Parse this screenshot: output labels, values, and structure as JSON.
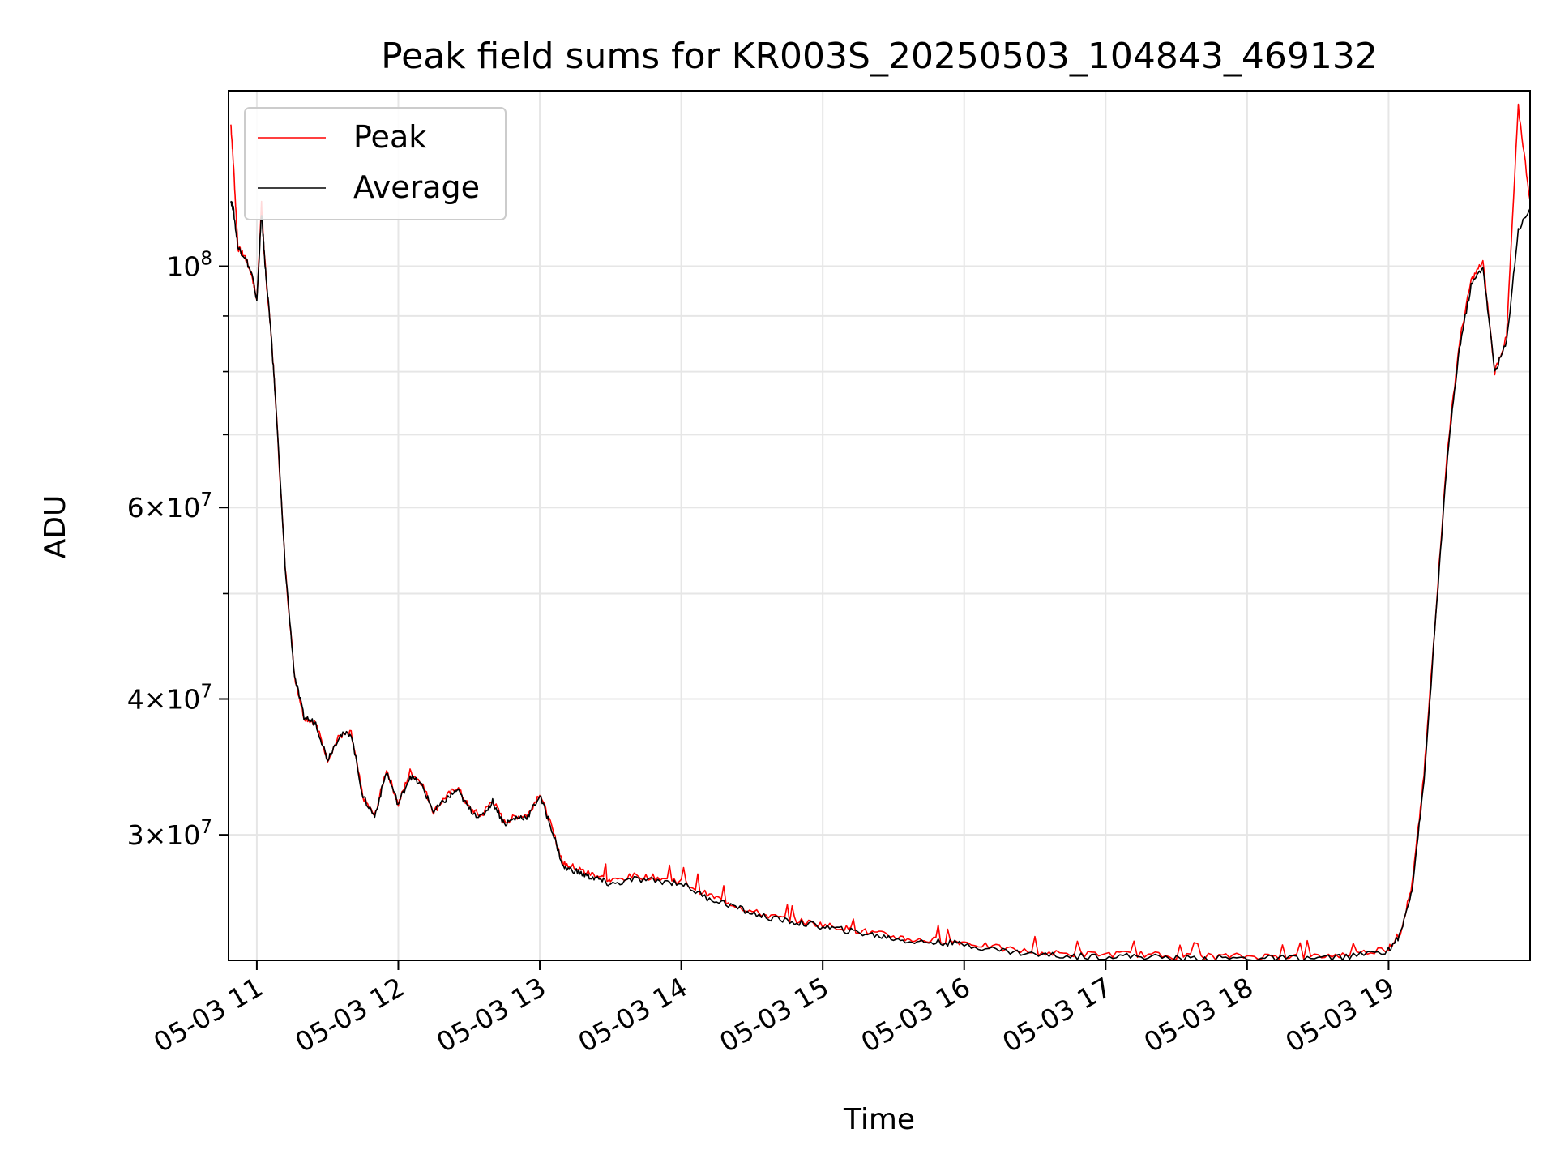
{
  "chart_data": {
    "type": "line",
    "title": "Peak field sums for KR003S_20250503_104843_469132",
    "xlabel": "Time",
    "ylabel": "ADU",
    "yscale": "log",
    "ylim": [
      23000000,
      145000000
    ],
    "xlim": [
      "2025-05-03T10:48",
      "2025-05-03T20:00"
    ],
    "grid": true,
    "legend": "upper left",
    "x_ticks": [
      {
        "t": "2025-05-03T11:00",
        "label": "05-03 11"
      },
      {
        "t": "2025-05-03T12:00",
        "label": "05-03 12"
      },
      {
        "t": "2025-05-03T13:00",
        "label": "05-03 13"
      },
      {
        "t": "2025-05-03T14:00",
        "label": "05-03 14"
      },
      {
        "t": "2025-05-03T15:00",
        "label": "05-03 15"
      },
      {
        "t": "2025-05-03T16:00",
        "label": "05-03 16"
      },
      {
        "t": "2025-05-03T17:00",
        "label": "05-03 17"
      },
      {
        "t": "2025-05-03T18:00",
        "label": "05-03 18"
      },
      {
        "t": "2025-05-03T19:00",
        "label": "05-03 19"
      }
    ],
    "y_ticks": [
      {
        "value": 30000000,
        "base": "3",
        "exp": "7"
      },
      {
        "value": 40000000,
        "base": "4",
        "exp": "7"
      },
      {
        "value": 60000000,
        "base": "6",
        "exp": "7"
      },
      {
        "value": 100000000,
        "base": "",
        "exp": "8"
      }
    ],
    "y_minor_ticks": [
      50000000,
      70000000,
      80000000,
      90000000
    ],
    "times_of_day": [
      "10:49",
      "10:50",
      "10:52",
      "10:55",
      "10:58",
      "11:00",
      "11:02",
      "11:03",
      "11:04",
      "11:06",
      "11:08",
      "11:12",
      "11:16",
      "11:20",
      "11:25",
      "11:30",
      "11:35",
      "11:40",
      "11:45",
      "11:50",
      "11:55",
      "12:00",
      "12:05",
      "12:10",
      "12:15",
      "12:20",
      "12:25",
      "12:30",
      "12:35",
      "12:40",
      "12:45",
      "12:50",
      "12:55",
      "13:00",
      "13:05",
      "13:10",
      "13:15",
      "13:20",
      "13:25",
      "13:30",
      "13:40",
      "13:50",
      "14:00",
      "14:10",
      "14:20",
      "14:30",
      "14:40",
      "14:50",
      "15:00",
      "15:10",
      "15:20",
      "15:30",
      "15:40",
      "15:50",
      "16:00",
      "16:15",
      "16:30",
      "16:45",
      "17:00",
      "17:15",
      "17:30",
      "17:45",
      "18:00",
      "18:15",
      "18:30",
      "18:45",
      "19:00",
      "19:05",
      "19:10",
      "19:15",
      "19:20",
      "19:25",
      "19:30",
      "19:35",
      "19:40",
      "19:45",
      "19:50",
      "19:55",
      "20:00"
    ],
    "series": [
      {
        "name": "Peak",
        "color": "#ff0000",
        "values": [
          135000000,
          125000000,
          104000000,
          102000000,
          98000000,
          93000000,
          114000000,
          104000000,
          97000000,
          87000000,
          75000000,
          53000000,
          42000000,
          38500000,
          38000000,
          35200000,
          37000000,
          37200000,
          32500000,
          31200000,
          34500000,
          32000000,
          34300000,
          33500000,
          31500000,
          32500000,
          33200000,
          31800000,
          31200000,
          32300000,
          30800000,
          31200000,
          31300000,
          32800000,
          30500000,
          28200000,
          28000000,
          27700000,
          27500000,
          27200000,
          27500000,
          27400000,
          27200000,
          26500000,
          26000000,
          25500000,
          25200000,
          25000000,
          24800000,
          24600000,
          24400000,
          24200000,
          24000000,
          24000000,
          23900000,
          23600000,
          23400000,
          23300000,
          23300000,
          23300000,
          23200000,
          23200000,
          23200000,
          23200000,
          23200000,
          23300000,
          23600000,
          24400000,
          27000000,
          34000000,
          48000000,
          68000000,
          85000000,
          97000000,
          101000000,
          80000000,
          86000000,
          140000000,
          115000000
        ]
      },
      {
        "name": "Average",
        "color": "#000000",
        "values": [
          115000000,
          113000000,
          104000000,
          102000000,
          98000000,
          93000000,
          112000000,
          104000000,
          97000000,
          87000000,
          75000000,
          53000000,
          42000000,
          38500000,
          38000000,
          35200000,
          37000000,
          37200000,
          32500000,
          31200000,
          34300000,
          32000000,
          34000000,
          33300000,
          31500000,
          32300000,
          33000000,
          31700000,
          31100000,
          32200000,
          30700000,
          31100000,
          31200000,
          32600000,
          30400000,
          28000000,
          27800000,
          27500000,
          27300000,
          27000000,
          27300000,
          27200000,
          27100000,
          26300000,
          25900000,
          25400000,
          25100000,
          24900000,
          24700000,
          24500000,
          24300000,
          24100000,
          23900000,
          23900000,
          23800000,
          23500000,
          23300000,
          23200000,
          23200000,
          23200000,
          23100000,
          23100000,
          23100000,
          23100000,
          23100000,
          23200000,
          23500000,
          24300000,
          26800000,
          33500000,
          47500000,
          67000000,
          84000000,
          96000000,
          100000000,
          80000000,
          85000000,
          108000000,
          113000000
        ]
      }
    ]
  }
}
